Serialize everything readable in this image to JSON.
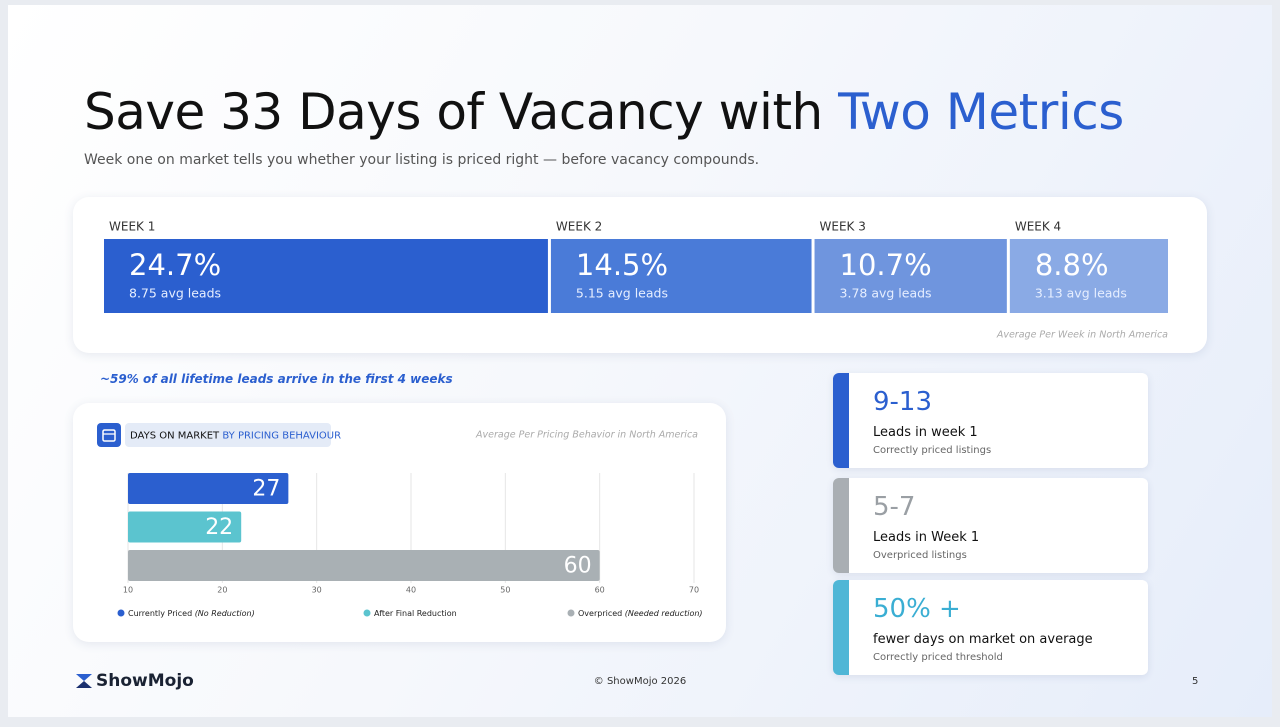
{
  "title": {
    "text": "Save 33 Days of Vacancy with",
    "highlight": "Two Metrics"
  },
  "subtitle": "Week one on market tells you whether your listing is priced right — before vacancy compounds.",
  "weeks": {
    "items": [
      {
        "label": "WEEK 1",
        "value": 24.7,
        "value_label": "24.7%",
        "leads": "8.75 avg leads",
        "color": "#2b5fcf"
      },
      {
        "label": "WEEK 2",
        "value": 14.5,
        "value_label": "14.5%",
        "leads": "5.15 avg leads",
        "color": "#4a7bd8"
      },
      {
        "label": "WEEK 3",
        "value": 10.7,
        "value_label": "10.7%",
        "leads": "3.78 avg leads",
        "color": "#6f95de"
      },
      {
        "label": "WEEK 4",
        "value": 8.8,
        "value_label": "8.8%",
        "leads": "3.13 avg leads",
        "color": "#8aaae5"
      }
    ],
    "note": "Average Per Week in North America"
  },
  "footnote": "~59% of all lifetime leads arrive in the first 4 weeks",
  "chart_data": {
    "type": "bar",
    "orientation": "horizontal",
    "title": "DAYS ON MARKET",
    "title_highlight": "BY PRICING BEHAVIOUR",
    "note": "Average Per Pricing Behavior in North America",
    "series": [
      {
        "name": "Currently Priced",
        "detail": "(No Reduction)",
        "color": "#2b5fcf",
        "values": [
          27
        ]
      },
      {
        "name": "After Final Reduction",
        "color": "#5bc4cf",
        "values": [
          22
        ]
      },
      {
        "name": "Overpriced",
        "detail": "(Needed reduction)",
        "color": "#a9b0b4",
        "values": [
          60
        ]
      }
    ],
    "xlim": [
      10,
      70
    ],
    "xticks": [
      10,
      20,
      30,
      40,
      50,
      60,
      70
    ],
    "grid": true
  },
  "stats": [
    {
      "value": "9-13",
      "label": "Leads in week 1",
      "sub": "Correctly priced listings"
    },
    {
      "value": "5-7",
      "label": "Leads in Week 1",
      "sub": "Overpriced listings"
    },
    {
      "value": "50% +",
      "label": "fewer days on market on average",
      "sub": "Correctly priced threshold"
    }
  ],
  "footer": {
    "logo": "ShowMojo",
    "copyright": "© ShowMojo 2026",
    "page": "5"
  }
}
